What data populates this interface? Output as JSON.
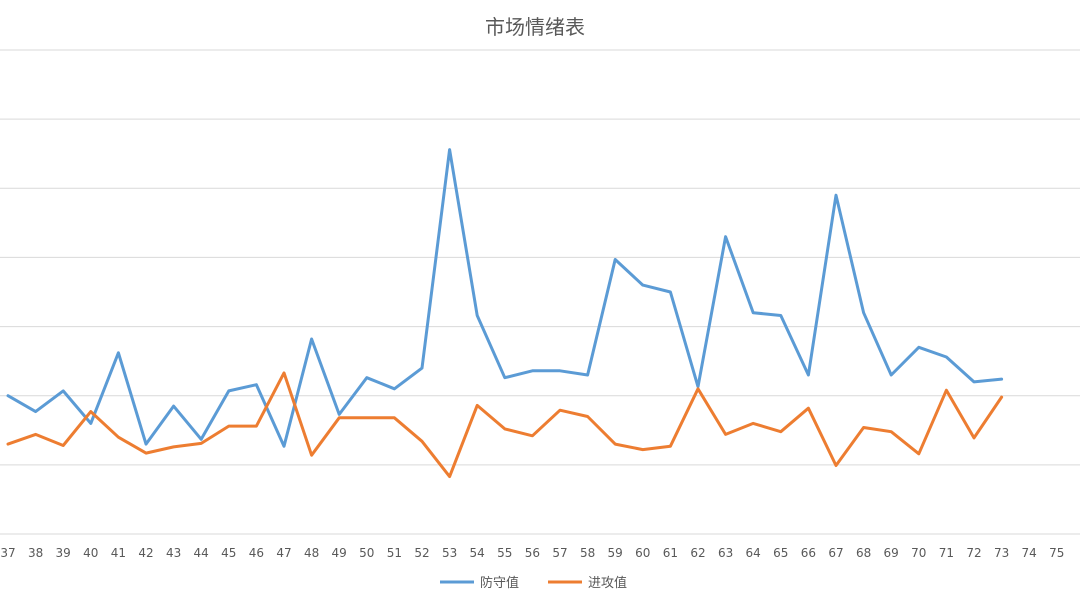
{
  "chart_data": {
    "type": "line",
    "title": "市场情绪表",
    "x": [
      "37",
      "38",
      "39",
      "40",
      "41",
      "42",
      "43",
      "44",
      "45",
      "46",
      "47",
      "48",
      "49",
      "50",
      "51",
      "52",
      "53",
      "54",
      "55",
      "56",
      "57",
      "58",
      "59",
      "60",
      "61",
      "62",
      "63",
      "64",
      "65",
      "66",
      "67",
      "68",
      "69",
      "70",
      "71",
      "72",
      "73",
      "74",
      "75"
    ],
    "ylim": [
      0,
      7
    ],
    "grid": true,
    "legend": "bottom",
    "series": [
      {
        "name": "防守值",
        "color": "#5b9bd5",
        "values": [
          2.0,
          1.77,
          2.07,
          1.6,
          2.62,
          1.3,
          1.85,
          1.37,
          2.07,
          2.16,
          1.27,
          2.82,
          1.73,
          2.26,
          2.1,
          2.4,
          5.56,
          3.16,
          2.26,
          2.36,
          2.36,
          2.3,
          3.97,
          3.6,
          3.5,
          2.13,
          4.3,
          3.2,
          3.16,
          2.3,
          4.9,
          3.2,
          2.3,
          2.7,
          2.56,
          2.2,
          2.24,
          null,
          null
        ]
      },
      {
        "name": "进攻值",
        "color": "#ed7d31",
        "values": [
          1.3,
          1.44,
          1.28,
          1.77,
          1.4,
          1.17,
          1.26,
          1.31,
          1.56,
          1.56,
          2.33,
          1.14,
          1.68,
          1.68,
          1.68,
          1.34,
          0.83,
          1.86,
          1.52,
          1.42,
          1.79,
          1.7,
          1.3,
          1.22,
          1.27,
          2.1,
          1.44,
          1.6,
          1.48,
          1.82,
          0.99,
          1.54,
          1.48,
          1.16,
          2.08,
          1.39,
          1.98,
          null,
          null
        ]
      }
    ]
  }
}
